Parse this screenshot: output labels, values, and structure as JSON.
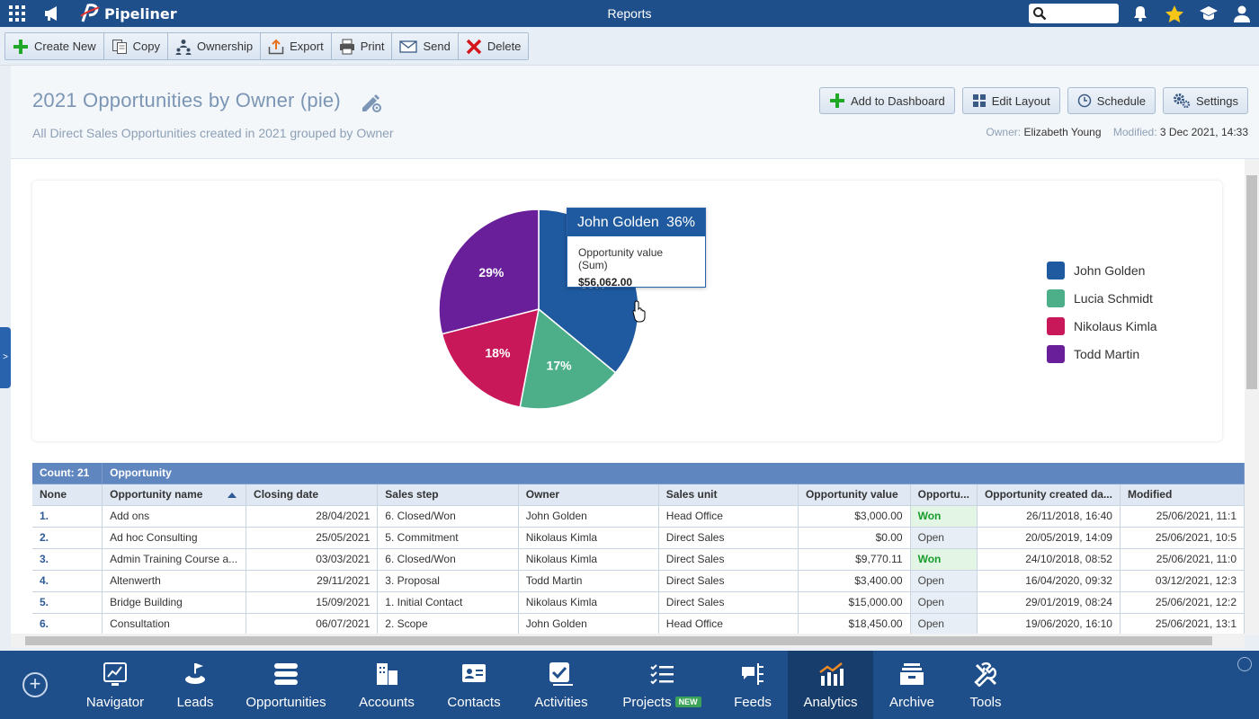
{
  "app": {
    "name": "Pipeliner",
    "section_title": "Reports"
  },
  "search": {
    "placeholder": ""
  },
  "toolbar": {
    "buttons": [
      {
        "label": "Create New",
        "icon": "plus-icon"
      },
      {
        "label": "Copy",
        "icon": "copy-icon"
      },
      {
        "label": "Ownership",
        "icon": "ownership-icon"
      },
      {
        "label": "Export",
        "icon": "export-icon"
      },
      {
        "label": "Print",
        "icon": "print-icon"
      },
      {
        "label": "Send",
        "icon": "send-icon"
      },
      {
        "label": "Delete",
        "icon": "delete-icon"
      }
    ]
  },
  "report": {
    "title": "2021 Opportunities by Owner (pie)",
    "subtitle": "All Direct Sales Opportunities created in 2021 grouped by Owner",
    "owner_label": "Owner:",
    "owner": "Elizabeth Young",
    "modified_label": "Modified:",
    "modified": "3 Dec 2021, 14:33",
    "buttons": {
      "add_to_dashboard": "Add to Dashboard",
      "edit_layout": "Edit Layout",
      "schedule": "Schedule",
      "settings": "Settings"
    }
  },
  "chart_data": {
    "type": "pie",
    "categories": [
      "John Golden",
      "Lucia Schmidt",
      "Nikolaus Kimla",
      "Todd Martin"
    ],
    "values": [
      36,
      17,
      18,
      29
    ],
    "value_labels": [
      "36%",
      "17%",
      "18%",
      "29%"
    ],
    "colors": [
      "#1f5aa0",
      "#4caf8a",
      "#c8185a",
      "#6a1f9a"
    ],
    "legend_position": "right",
    "tooltip": {
      "name": "John Golden",
      "percent": "36%",
      "metric": "Opportunity value (Sum)",
      "value": "$56,062.00"
    }
  },
  "table": {
    "count_label": "Count: 21",
    "group_label": "Opportunity",
    "columns": [
      "None",
      "Opportunity name",
      "Closing date",
      "Sales step",
      "Owner",
      "Sales unit",
      "Opportunity value",
      "Opportu...",
      "Opportunity created da...",
      "Modified"
    ],
    "rows": [
      [
        "1.",
        "Add ons",
        "28/04/2021",
        "6. Closed/Won",
        "John Golden",
        "Head Office",
        "$3,000.00",
        "Won",
        "26/11/2018, 16:40",
        "25/06/2021, 11:1"
      ],
      [
        "2.",
        "Ad hoc Consulting",
        "25/05/2021",
        "5. Commitment",
        "Nikolaus Kimla",
        "Direct Sales",
        "$0.00",
        "Open",
        "20/05/2019, 14:09",
        "25/06/2021, 10:5"
      ],
      [
        "3.",
        "Admin Training Course a...",
        "03/03/2021",
        "6. Closed/Won",
        "Nikolaus Kimla",
        "Direct Sales",
        "$9,770.11",
        "Won",
        "24/10/2018, 08:52",
        "25/06/2021, 11:0"
      ],
      [
        "4.",
        "Altenwerth",
        "29/11/2021",
        "3. Proposal",
        "Todd Martin",
        "Direct Sales",
        "$3,400.00",
        "Open",
        "16/04/2020, 09:32",
        "03/12/2021, 12:3"
      ],
      [
        "5.",
        "Bridge Building",
        "15/09/2021",
        "1. Initial Contact",
        "Nikolaus Kimla",
        "Direct Sales",
        "$15,000.00",
        "Open",
        "29/01/2019, 08:24",
        "25/06/2021, 12:2"
      ],
      [
        "6.",
        "Consultation",
        "06/07/2021",
        "2. Scope",
        "John Golden",
        "Head Office",
        "$18,450.00",
        "Open",
        "19/06/2020, 16:10",
        "25/06/2021, 13:1"
      ]
    ]
  },
  "bottom_nav": {
    "items": [
      {
        "label": "Navigator",
        "icon": "navigator-icon"
      },
      {
        "label": "Leads",
        "icon": "leads-icon"
      },
      {
        "label": "Opportunities",
        "icon": "opportunities-icon"
      },
      {
        "label": "Accounts",
        "icon": "accounts-icon"
      },
      {
        "label": "Contacts",
        "icon": "contacts-icon"
      },
      {
        "label": "Activities",
        "icon": "activities-icon"
      },
      {
        "label": "Projects",
        "icon": "projects-icon",
        "badge": "NEW"
      },
      {
        "label": "Feeds",
        "icon": "feeds-icon"
      },
      {
        "label": "Analytics",
        "icon": "analytics-icon",
        "active": true
      },
      {
        "label": "Archive",
        "icon": "archive-icon"
      },
      {
        "label": "Tools",
        "icon": "tools-icon"
      }
    ]
  }
}
